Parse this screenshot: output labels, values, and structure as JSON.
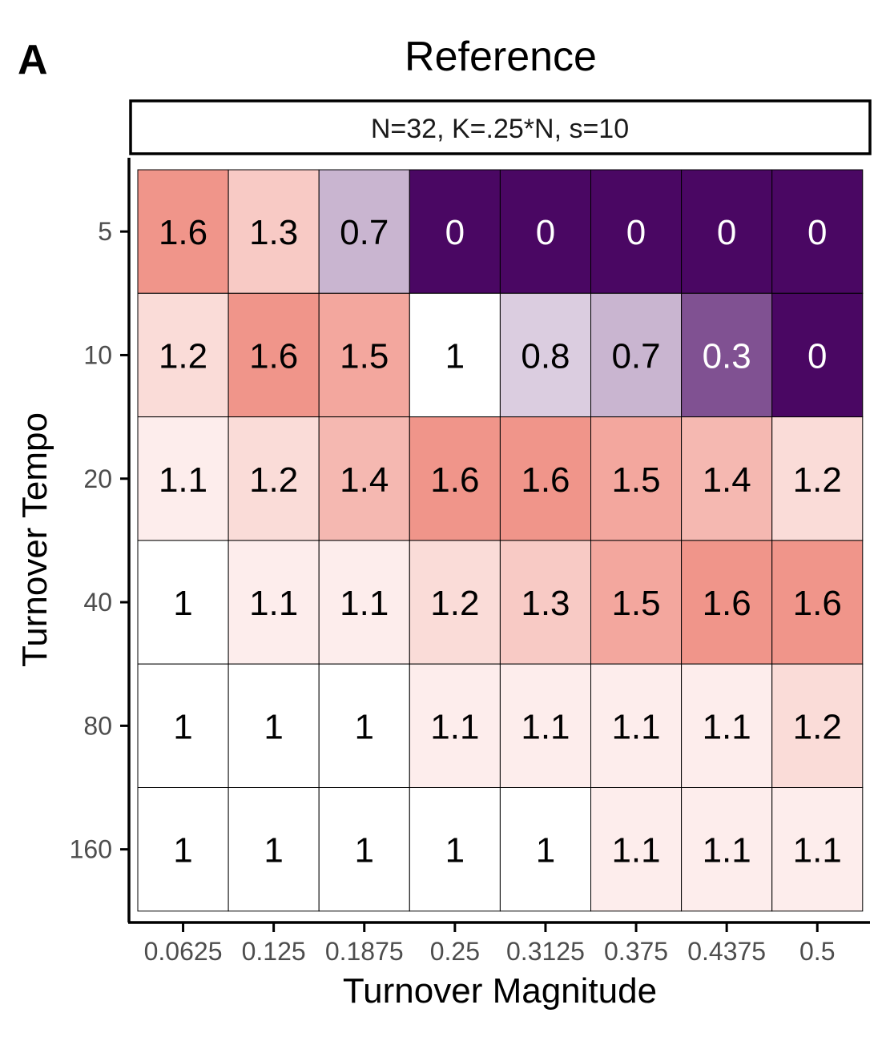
{
  "panel_label": "A",
  "chart_data": {
    "type": "heatmap",
    "title": "Reference",
    "facet_label": "N=32, K=.25*N, s=10",
    "xlabel": "Turnover Magnitude",
    "ylabel": "Turnover Tempo",
    "x_categories": [
      "0.0625",
      "0.125",
      "0.1875",
      "0.25",
      "0.3125",
      "0.375",
      "0.4375",
      "0.5"
    ],
    "y_categories": [
      "5",
      "10",
      "20",
      "40",
      "80",
      "160"
    ],
    "values": [
      [
        1.6,
        1.3,
        0.7,
        0,
        0,
        0,
        0,
        0
      ],
      [
        1.2,
        1.6,
        1.5,
        1,
        0.8,
        0.7,
        0.3,
        0
      ],
      [
        1.1,
        1.2,
        1.4,
        1.6,
        1.6,
        1.5,
        1.4,
        1.2
      ],
      [
        1,
        1.1,
        1.1,
        1.2,
        1.3,
        1.5,
        1.6,
        1.6
      ],
      [
        1,
        1,
        1,
        1.1,
        1.1,
        1.1,
        1.1,
        1.2
      ],
      [
        1,
        1,
        1,
        1,
        1,
        1.1,
        1.1,
        1.1
      ]
    ],
    "color_scale": {
      "low_color": "#4a0763",
      "mid_color": "#ffffff",
      "high_color": "#f0958a",
      "midpoint": 1,
      "limits": [
        0,
        1.6
      ]
    },
    "grid": false,
    "legend": "none"
  }
}
